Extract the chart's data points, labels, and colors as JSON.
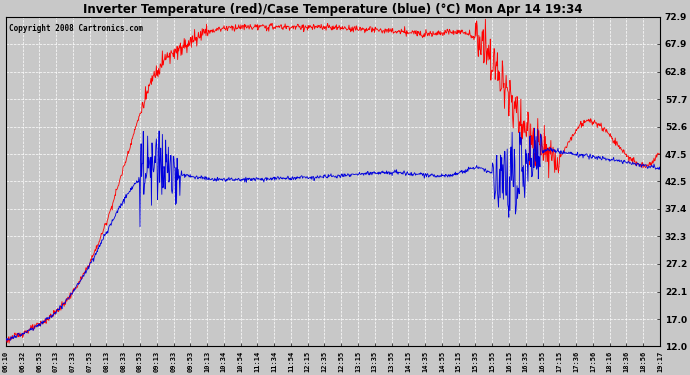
{
  "title": "Inverter Temperature (red)/Case Temperature (blue) (°C) Mon Apr 14 19:34",
  "copyright": "Copyright 2008 Cartronics.com",
  "yticks": [
    12.0,
    17.0,
    22.1,
    27.2,
    32.3,
    37.4,
    42.5,
    47.5,
    52.6,
    57.7,
    62.8,
    67.9,
    72.9
  ],
  "ymin": 12.0,
  "ymax": 72.9,
  "background_color": "#c8c8c8",
  "plot_bg_color": "#c8c8c8",
  "red_color": "#ff0000",
  "blue_color": "#0000dd",
  "grid_color": "#ffffff",
  "xtick_labels": [
    "06:10",
    "06:32",
    "06:53",
    "07:13",
    "07:33",
    "07:53",
    "08:13",
    "08:33",
    "08:53",
    "09:13",
    "09:33",
    "09:53",
    "10:13",
    "10:34",
    "10:54",
    "11:14",
    "11:34",
    "11:54",
    "12:15",
    "12:35",
    "12:55",
    "13:15",
    "13:35",
    "13:55",
    "14:15",
    "14:35",
    "14:55",
    "15:15",
    "15:35",
    "15:55",
    "16:15",
    "16:35",
    "16:55",
    "17:15",
    "17:36",
    "17:56",
    "18:16",
    "18:36",
    "18:56",
    "19:17"
  ],
  "figsize": [
    6.9,
    3.75
  ],
  "dpi": 100
}
